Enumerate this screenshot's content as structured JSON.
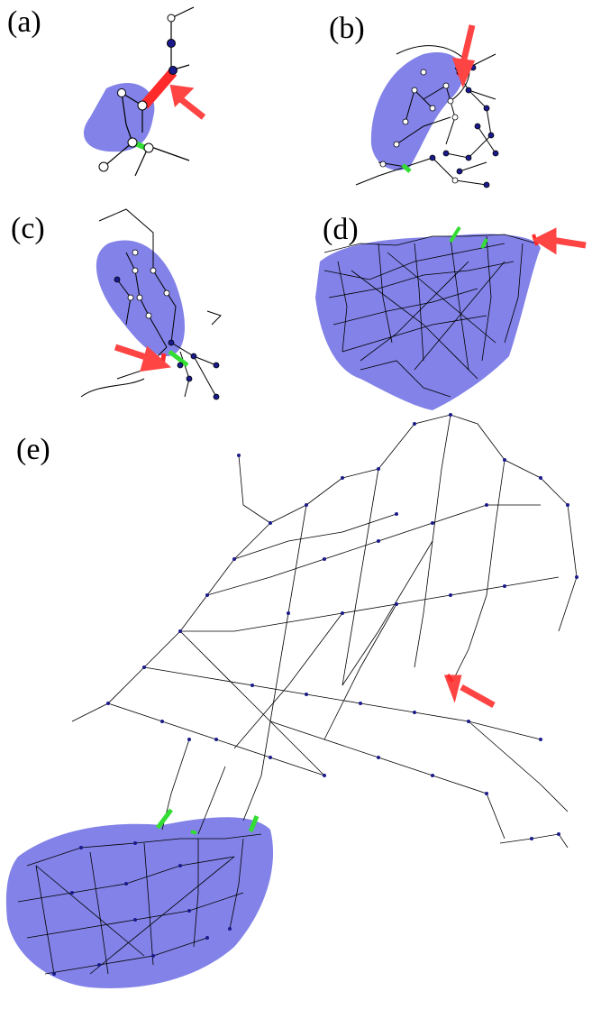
{
  "labels": {
    "a": "(a)",
    "b": "(b)",
    "c": "(c)",
    "d": "(d)",
    "e": "(e)"
  },
  "colors": {
    "region": "#7474e6",
    "tripped_line": "#ff2a2a",
    "boundary_line": "#33dd33",
    "arrow": "#ff4444",
    "node_inside": "#ffffff",
    "node_outside": "#1a1a8c",
    "line": "#000000"
  }
}
